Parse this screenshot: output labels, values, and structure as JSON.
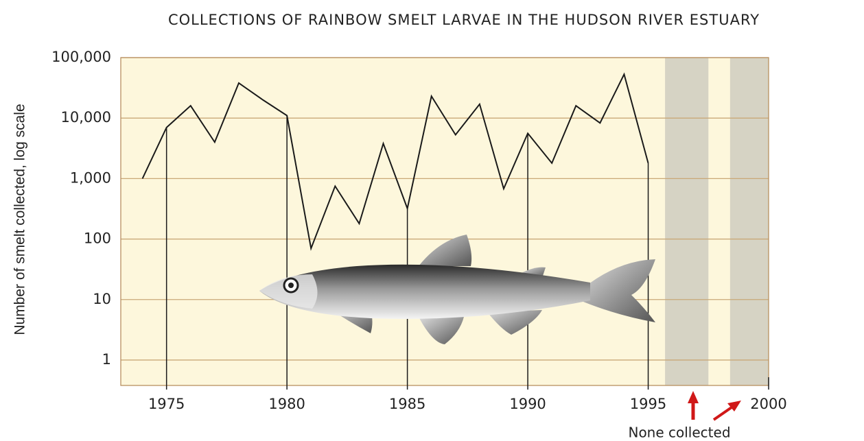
{
  "chart_data": {
    "type": "line",
    "title": "COLLECTIONS OF RAINBOW SMELT LARVAE IN THE HUDSON RIVER ESTUARY",
    "y_label": "Number of smelt collected, log scale",
    "annotation": "None collected",
    "x": [
      1974,
      1975,
      1976,
      1977,
      1978,
      1979,
      1980,
      1981,
      1982,
      1983,
      1984,
      1985,
      1986,
      1987,
      1988,
      1989,
      1990,
      1991,
      1992,
      1993,
      1994,
      1995
    ],
    "values": [
      1000,
      7000,
      16000,
      4000,
      38000,
      20000,
      11000,
      70,
      750,
      180,
      3800,
      320,
      23000,
      5300,
      17000,
      680,
      5600,
      1800,
      16000,
      8300,
      53000,
      1800
    ],
    "color": "#1a1a1a",
    "shaded_ranges": [
      [
        1995.7,
        1997.5
      ],
      [
        1998.4,
        2000
      ]
    ],
    "xlim": [
      1973.1,
      2000
    ],
    "xticks": [
      1975,
      1980,
      1985,
      1990,
      1995,
      2000
    ],
    "ylim": [
      0.38,
      100000
    ],
    "yticks": [
      1,
      10,
      100,
      {
        "value": 1000,
        "label": "1,000"
      },
      {
        "value": 10000,
        "label": "10,000"
      },
      {
        "value": 100000,
        "label": "100,000"
      }
    ],
    "log_scale": true,
    "grid": true
  }
}
